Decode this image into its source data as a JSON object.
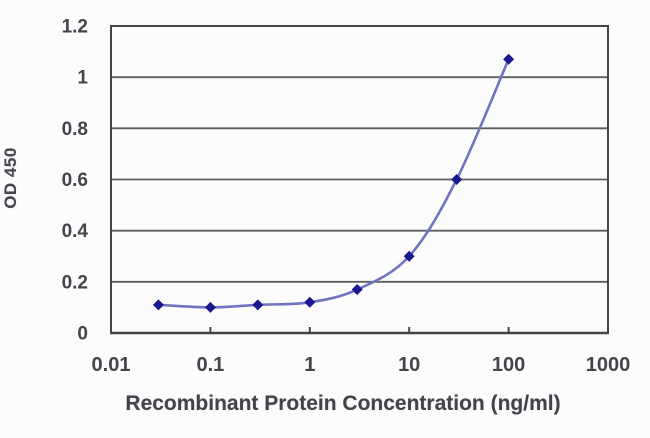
{
  "chart_data": {
    "type": "line",
    "title": "",
    "xlabel": "Recombinant Protein Concentration (ng/ml)",
    "ylabel": "OD 450",
    "x_scale": "log",
    "xlim": [
      0.01,
      1000
    ],
    "ylim": [
      0,
      1.2
    ],
    "x_ticks": [
      0.01,
      0.1,
      1,
      10,
      100,
      1000
    ],
    "x_tick_labels": [
      "0.01",
      "0.1",
      "1",
      "10",
      "100",
      "1000"
    ],
    "y_ticks": [
      0,
      0.2,
      0.4,
      0.6,
      0.8,
      1,
      1.2
    ],
    "y_tick_labels": [
      "0",
      "0.2",
      "0.4",
      "0.6",
      "0.8",
      "1",
      "1.2"
    ],
    "grid": true,
    "legend": "none",
    "series": [
      {
        "name": "OD 450",
        "marker": "diamond",
        "x": [
          0.03,
          0.1,
          0.3,
          1,
          3,
          10,
          30,
          100
        ],
        "y": [
          0.11,
          0.1,
          0.11,
          0.12,
          0.17,
          0.3,
          0.6,
          1.07
        ]
      }
    ]
  },
  "colors": {
    "line": "#7174be",
    "marker": "#19188f",
    "grid": "#5e5e5e",
    "axis_border": "#454545",
    "text": "#44444d",
    "background": "#fdfcfc"
  }
}
